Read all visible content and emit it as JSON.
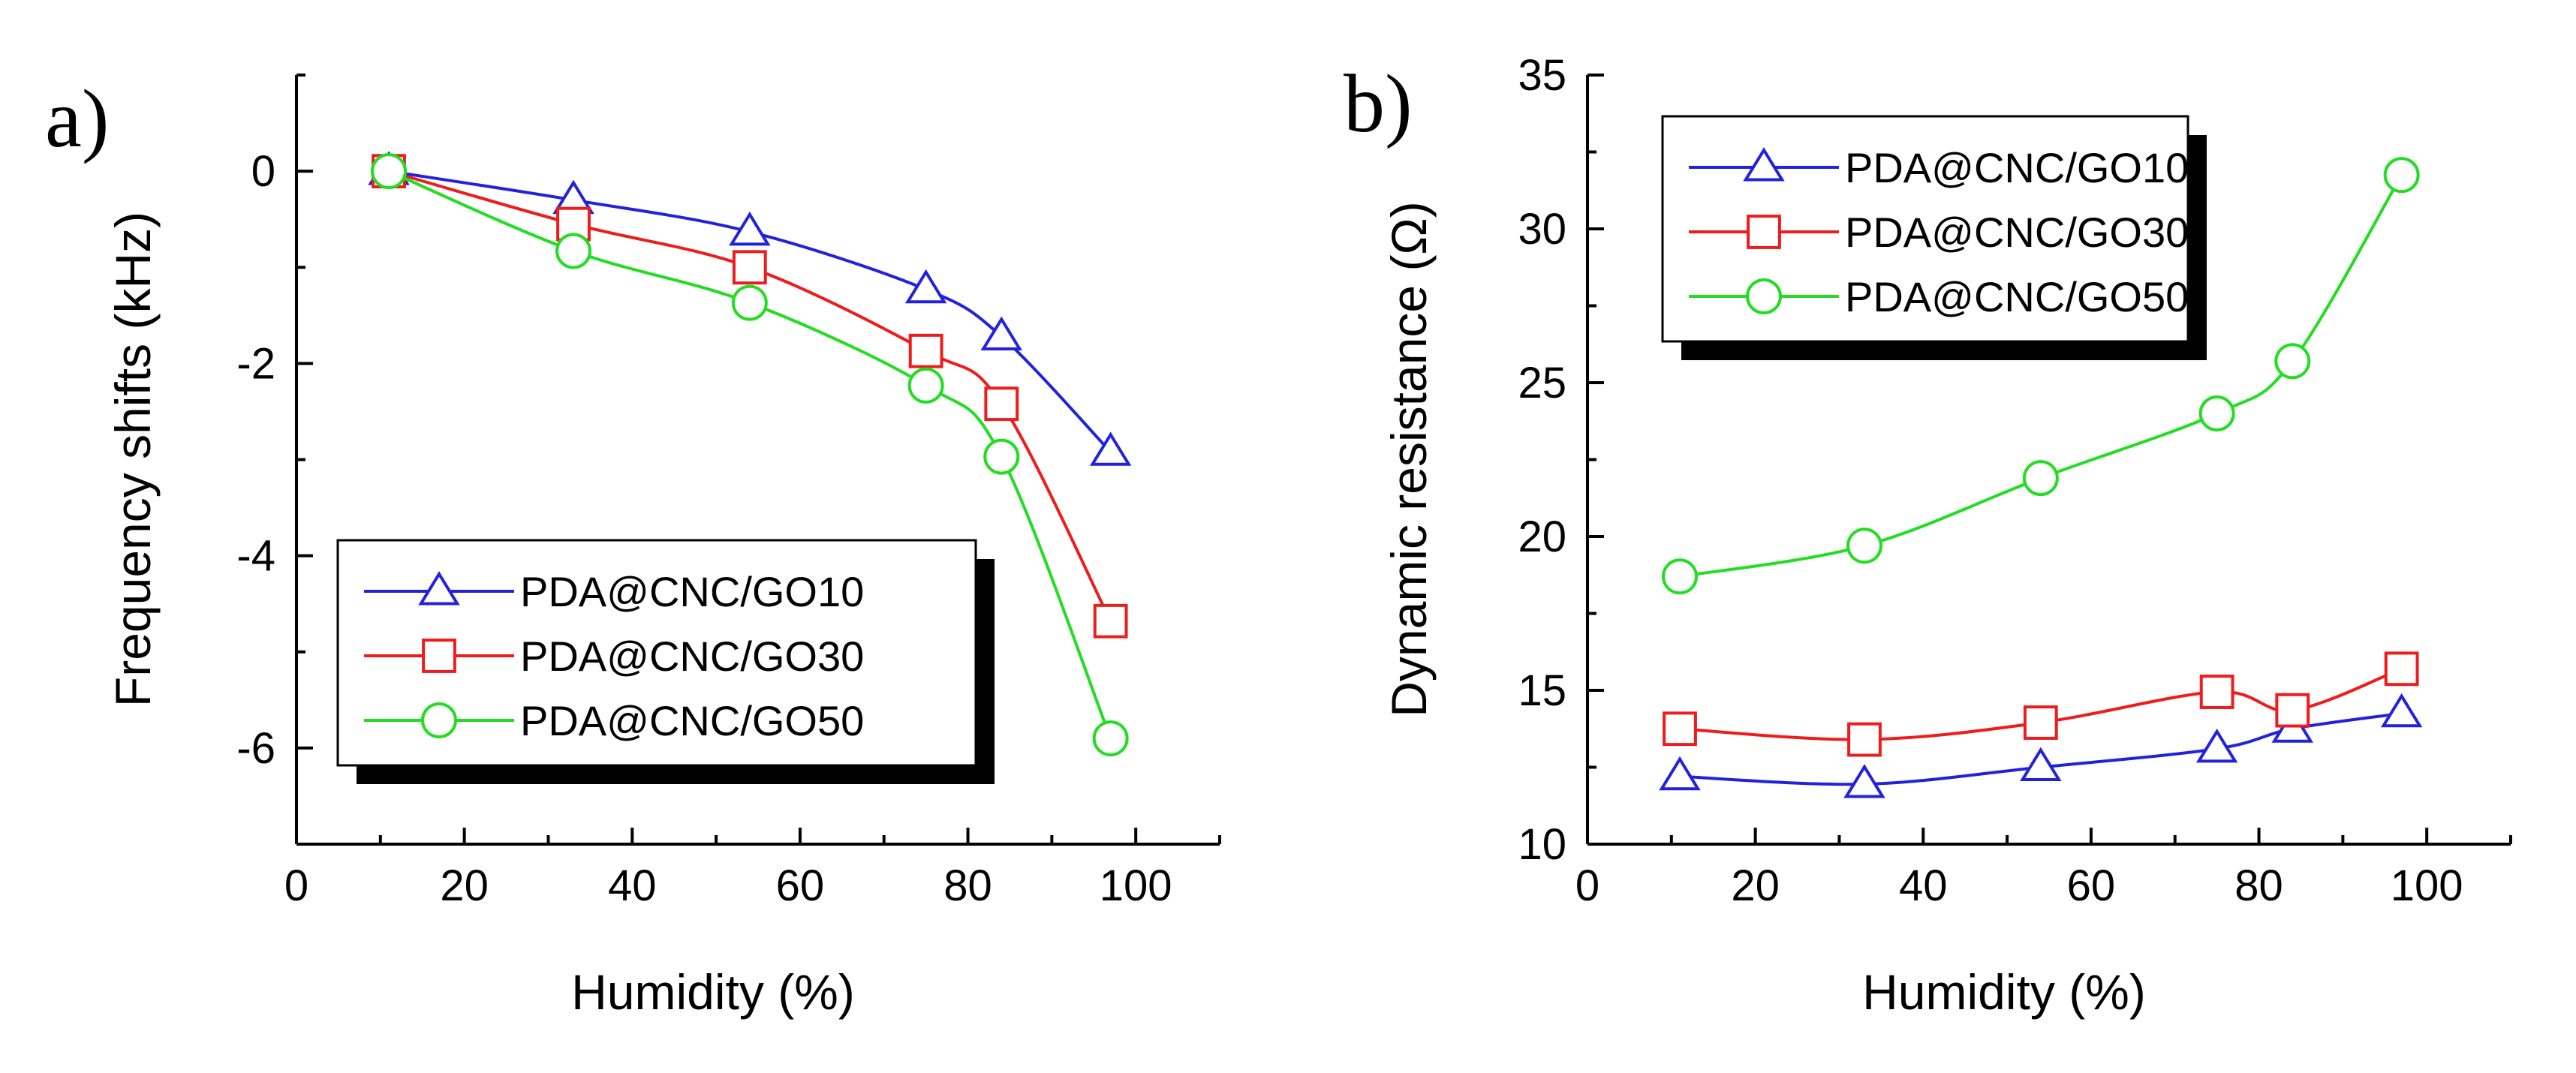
{
  "chart_data": [
    {
      "type": "line",
      "panel_label": "a)",
      "xlabel": "Humidity (%)",
      "ylabel": "Frequency shifts (kHz)",
      "xlim": [
        0,
        110
      ],
      "ylim": [
        -7,
        1
      ],
      "xticks": [
        0,
        20,
        40,
        60,
        80,
        100
      ],
      "yticks": [
        0,
        -2,
        -4,
        -6
      ],
      "x": [
        11,
        33,
        54,
        75,
        84,
        97
      ],
      "legend_position": "lower-left",
      "series": [
        {
          "name": "PDA@CNC/GO10",
          "marker": "triangle",
          "color": "#2222dd",
          "values": [
            0,
            -0.3,
            -0.63,
            -1.23,
            -1.72,
            -2.92
          ]
        },
        {
          "name": "PDA@CNC/GO30",
          "marker": "square",
          "color": "#ee1c1c",
          "values": [
            0,
            -0.55,
            -1.0,
            -1.87,
            -2.42,
            -4.68
          ]
        },
        {
          "name": "PDA@CNC/GO50",
          "marker": "circle",
          "color": "#22dd22",
          "values": [
            0,
            -0.83,
            -1.37,
            -2.23,
            -2.97,
            -5.9
          ]
        }
      ]
    },
    {
      "type": "line",
      "panel_label": "b)",
      "xlabel": "Humidity (%)",
      "ylabel": "Dynamic resistance (Ω)",
      "xlim": [
        0,
        110
      ],
      "ylim": [
        10,
        35
      ],
      "xticks": [
        0,
        20,
        40,
        60,
        80,
        100
      ],
      "yticks": [
        10,
        15,
        20,
        25,
        30,
        35
      ],
      "x": [
        11,
        33,
        54,
        75,
        84,
        97
      ],
      "legend_position": "top-left",
      "series": [
        {
          "name": "PDA@CNC/GO10",
          "marker": "triangle",
          "color": "#2222dd",
          "values": [
            12.2,
            11.95,
            12.5,
            13.1,
            13.75,
            14.25
          ]
        },
        {
          "name": "PDA@CNC/GO30",
          "marker": "square",
          "color": "#ee1c1c",
          "values": [
            13.75,
            13.4,
            13.95,
            14.95,
            14.35,
            15.7
          ]
        },
        {
          "name": "PDA@CNC/GO50",
          "marker": "circle",
          "color": "#22dd22",
          "values": [
            18.7,
            19.7,
            21.9,
            24.0,
            25.7,
            31.75
          ]
        }
      ]
    }
  ]
}
